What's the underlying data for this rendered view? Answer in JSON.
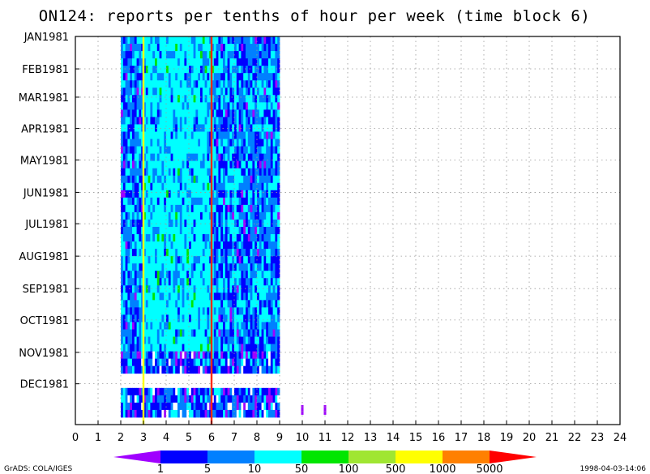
{
  "chart_data": {
    "type": "heatmap",
    "title": "ON124: reports per tenths of hour per week (time block 6)",
    "xlabel": "",
    "ylabel": "",
    "xlim": [
      0,
      24
    ],
    "x_ticks": [
      "0",
      "1",
      "2",
      "3",
      "4",
      "5",
      "6",
      "7",
      "8",
      "9",
      "10",
      "11",
      "12",
      "13",
      "14",
      "15",
      "16",
      "17",
      "18",
      "19",
      "20",
      "21",
      "22",
      "23",
      "24"
    ],
    "y_ticks": [
      "JAN1981",
      "FEB1981",
      "MAR1981",
      "APR1981",
      "MAY1981",
      "JUN1981",
      "JUL1981",
      "AUG1981",
      "SEP1981",
      "OCT1981",
      "NOV1981",
      "DEC1981"
    ],
    "grid": true,
    "data_region": {
      "hour_start": 2.0,
      "hour_end": 9.0,
      "week_start": 1,
      "week_end": 52,
      "gap_weeks": [
        47,
        48
      ],
      "sparse_points": [
        {
          "hour": 10.0,
          "week": 52,
          "level": "1"
        },
        {
          "hour": 11.0,
          "week": 52,
          "level": "1"
        }
      ],
      "vertical_lines": [
        {
          "hour": 3.0,
          "color": "#ffff00"
        },
        {
          "hour": 6.0,
          "color": "#ff2a00"
        }
      ]
    },
    "legend": {
      "labels": [
        "1",
        "5",
        "10",
        "50",
        "100",
        "500",
        "1000",
        "5000"
      ],
      "colors": [
        "#a000ff",
        "#0000ff",
        "#0080ff",
        "#00ffff",
        "#00e600",
        "#a0e632",
        "#ffff00",
        "#ff8000",
        "#ff0000"
      ],
      "placement": "bottom"
    }
  },
  "footer": {
    "left": "GrADS: COLA/IGES",
    "right": "1998-04-03-14:06"
  }
}
